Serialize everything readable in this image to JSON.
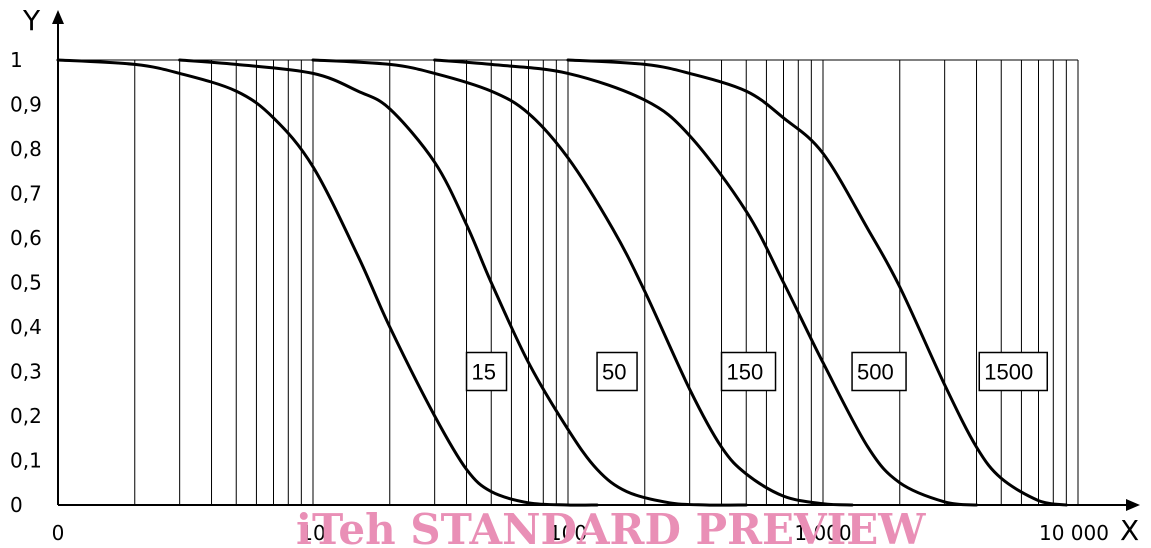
{
  "watermark": "iTeh STANDARD PREVIEW",
  "chart_data": {
    "type": "line",
    "xlabel": "X",
    "ylabel": "Y",
    "x_scale": "log",
    "xlim": [
      1,
      10000
    ],
    "ylim": [
      0,
      1
    ],
    "grid": "vertical",
    "x_ticks": [
      {
        "value": 1,
        "label": "0"
      },
      {
        "value": 10,
        "label": "10"
      },
      {
        "value": 100,
        "label": "100"
      },
      {
        "value": 1000,
        "label": "1 000"
      },
      {
        "value": 10000,
        "label": "10 000"
      }
    ],
    "y_ticks": [
      {
        "value": 0,
        "label": "0"
      },
      {
        "value": 0.1,
        "label": "0,1"
      },
      {
        "value": 0.2,
        "label": "0,2"
      },
      {
        "value": 0.3,
        "label": "0,3"
      },
      {
        "value": 0.4,
        "label": "0,4"
      },
      {
        "value": 0.5,
        "label": "0,5"
      },
      {
        "value": 0.6,
        "label": "0,6"
      },
      {
        "value": 0.7,
        "label": "0,7"
      },
      {
        "value": 0.8,
        "label": "0,8"
      },
      {
        "value": 0.9,
        "label": "0,9"
      },
      {
        "value": 1,
        "label": "1"
      }
    ],
    "series": [
      {
        "name": "15",
        "x0": 1,
        "label_at": [
          40,
          0.3
        ],
        "x": [
          1,
          2,
          3,
          5,
          7,
          10,
          15,
          20,
          30,
          40,
          50,
          70,
          100,
          130
        ],
        "y": [
          1,
          0.99,
          0.97,
          0.93,
          0.87,
          0.76,
          0.56,
          0.4,
          0.2,
          0.08,
          0.03,
          0.005,
          0,
          0
        ]
      },
      {
        "name": "50",
        "x0": 3,
        "label_at": [
          130,
          0.3
        ],
        "x": [
          3,
          5,
          10,
          15,
          20,
          30,
          40,
          50,
          70,
          100,
          130,
          170,
          250,
          350,
          500
        ],
        "y": [
          1,
          0.99,
          0.97,
          0.93,
          0.89,
          0.77,
          0.63,
          0.5,
          0.32,
          0.17,
          0.08,
          0.03,
          0.005,
          0,
          0
        ]
      },
      {
        "name": "150",
        "x0": 10,
        "label_at": [
          400,
          0.3
        ],
        "x": [
          10,
          20,
          30,
          50,
          70,
          100,
          150,
          200,
          300,
          400,
          500,
          700,
          1000,
          1300
        ],
        "y": [
          1,
          0.99,
          0.97,
          0.93,
          0.88,
          0.78,
          0.62,
          0.48,
          0.26,
          0.13,
          0.07,
          0.02,
          0.003,
          0
        ]
      },
      {
        "name": "500",
        "x0": 30,
        "label_at": [
          1300,
          0.3
        ],
        "x": [
          30,
          50,
          100,
          200,
          300,
          500,
          700,
          1000,
          1500,
          2000,
          3000,
          4000
        ],
        "y": [
          1,
          0.99,
          0.97,
          0.91,
          0.83,
          0.66,
          0.5,
          0.32,
          0.13,
          0.05,
          0.007,
          0
        ]
      },
      {
        "name": "1500",
        "x0": 100,
        "label_at": [
          4100,
          0.3
        ],
        "x": [
          100,
          200,
          300,
          500,
          700,
          1000,
          1500,
          2000,
          3000,
          4000,
          5000,
          7000,
          9000
        ],
        "y": [
          1,
          0.99,
          0.97,
          0.93,
          0.87,
          0.79,
          0.62,
          0.49,
          0.27,
          0.13,
          0.06,
          0.01,
          0
        ]
      }
    ]
  }
}
